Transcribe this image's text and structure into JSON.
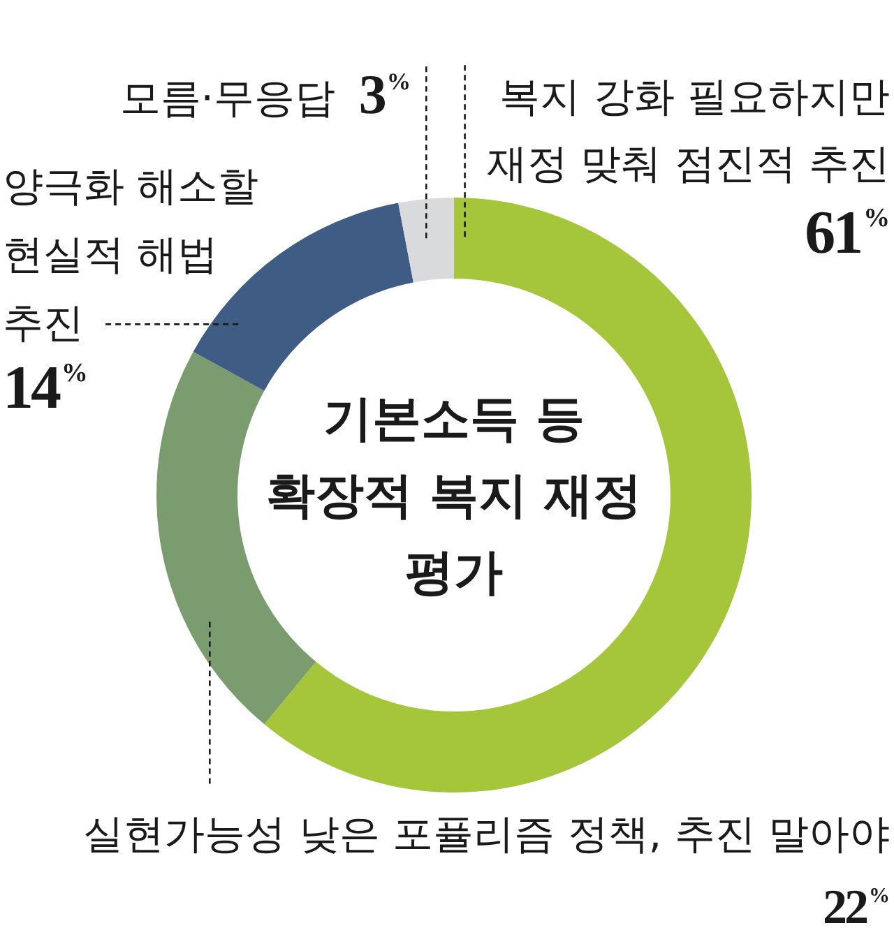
{
  "chart_data": {
    "type": "donut",
    "title": "기본소득 등\n확장적 복지 재정\n평가",
    "categories": [
      "복지 강화 필요하지만\n재정 맞춰 점진적 추진",
      "실현가능성 낮은 포퓰리즘 정책, 추진 말아야",
      "양극화 해소할\n현실적 해법\n추진",
      "모름·무응답"
    ],
    "values": [
      61,
      22,
      14,
      3
    ],
    "colors": [
      "#a5c63b",
      "#7b9c6e",
      "#3f5d84",
      "#d9dadb"
    ],
    "value_labels": [
      "61$^{%}$",
      "22$^{%}$",
      "14$^{%}$",
      "3$^{%}$"
    ]
  }
}
